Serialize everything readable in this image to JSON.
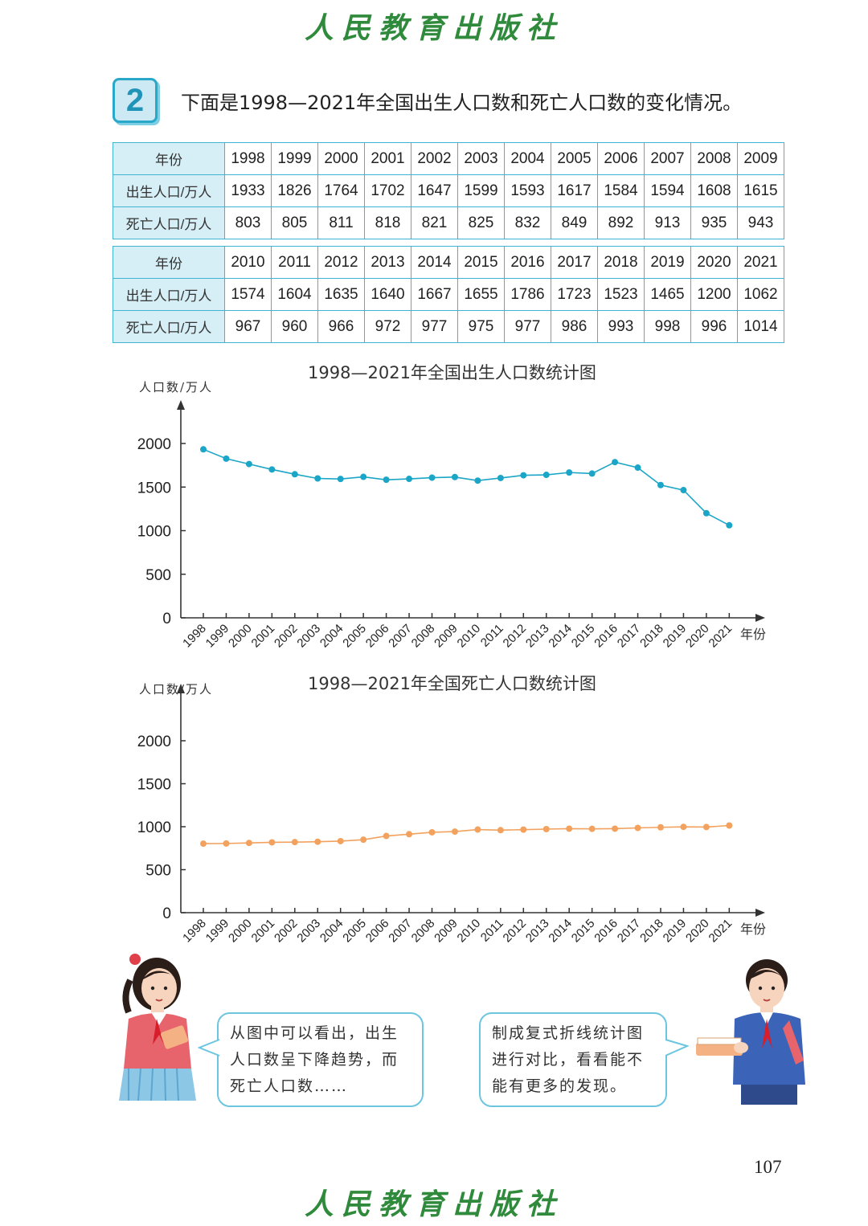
{
  "publisher": "人民教育出版社",
  "problem": {
    "number": "2",
    "text": "下面是1998—2021年全国出生人口数和死亡人口数的变化情况。"
  },
  "table": {
    "row_labels": {
      "year": "年份",
      "births": "出生人口/万人",
      "deaths": "死亡人口/万人"
    },
    "part1": {
      "years": [
        "1998",
        "1999",
        "2000",
        "2001",
        "2002",
        "2003",
        "2004",
        "2005",
        "2006",
        "2007",
        "2008",
        "2009"
      ],
      "births": [
        "1933",
        "1826",
        "1764",
        "1702",
        "1647",
        "1599",
        "1593",
        "1617",
        "1584",
        "1594",
        "1608",
        "1615"
      ],
      "deaths": [
        "803",
        "805",
        "811",
        "818",
        "821",
        "825",
        "832",
        "849",
        "892",
        "913",
        "935",
        "943"
      ]
    },
    "part2": {
      "years": [
        "2010",
        "2011",
        "2012",
        "2013",
        "2014",
        "2015",
        "2016",
        "2017",
        "2018",
        "2019",
        "2020",
        "2021"
      ],
      "births": [
        "1574",
        "1604",
        "1635",
        "1640",
        "1667",
        "1655",
        "1786",
        "1723",
        "1523",
        "1465",
        "1200",
        "1062"
      ],
      "deaths": [
        "967",
        "960",
        "966",
        "972",
        "977",
        "975",
        "977",
        "986",
        "993",
        "998",
        "996",
        "1014"
      ]
    }
  },
  "chart_data": [
    {
      "type": "line",
      "title": "1998—2021年全国出生人口数统计图",
      "ylabel": "人口数/万人",
      "xlabel": "年份",
      "ylim": [
        0,
        2000
      ],
      "yticks": [
        "0",
        "500",
        "1000",
        "1500",
        "2000"
      ],
      "categories": [
        "1998",
        "1999",
        "2000",
        "2001",
        "2002",
        "2003",
        "2004",
        "2005",
        "2006",
        "2007",
        "2008",
        "2009",
        "2010",
        "2011",
        "2012",
        "2013",
        "2014",
        "2015",
        "2016",
        "2017",
        "2018",
        "2019",
        "2020",
        "2021"
      ],
      "values": [
        1933,
        1826,
        1764,
        1702,
        1647,
        1599,
        1593,
        1617,
        1584,
        1594,
        1608,
        1615,
        1574,
        1604,
        1635,
        1640,
        1667,
        1655,
        1786,
        1723,
        1523,
        1465,
        1200,
        1062
      ],
      "color": "#1ba6c7"
    },
    {
      "type": "line",
      "title": "1998—2021年全国死亡人口数统计图",
      "ylabel": "人口数/万人",
      "xlabel": "年份",
      "ylim": [
        0,
        2000
      ],
      "yticks": [
        "0",
        "500",
        "1000",
        "1500",
        "2000"
      ],
      "categories": [
        "1998",
        "1999",
        "2000",
        "2001",
        "2002",
        "2003",
        "2004",
        "2005",
        "2006",
        "2007",
        "2008",
        "2009",
        "2010",
        "2011",
        "2012",
        "2013",
        "2014",
        "2015",
        "2016",
        "2017",
        "2018",
        "2019",
        "2020",
        "2021"
      ],
      "values": [
        803,
        805,
        811,
        818,
        821,
        825,
        832,
        849,
        892,
        913,
        935,
        943,
        967,
        960,
        966,
        972,
        977,
        975,
        977,
        986,
        993,
        998,
        996,
        1014
      ],
      "color": "#f2a25e"
    }
  ],
  "dialogue": {
    "left": [
      "从图中可以看出，出生",
      "人口数呈下降趋势，而",
      "死亡人口数……"
    ],
    "right": [
      "制成复式折线统计图",
      "进行对比，看看能不",
      "能有更多的发现。"
    ]
  },
  "page_number": "107"
}
